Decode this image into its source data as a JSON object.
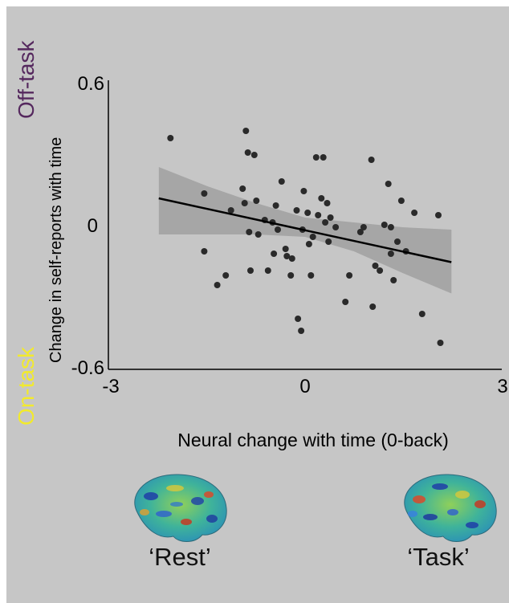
{
  "chart_data": {
    "type": "scatter",
    "xlabel": "Neural change with time (0-back)",
    "ylabel": "Change in self-reports with time",
    "xlim": [
      -3,
      3
    ],
    "ylim": [
      -0.6,
      0.6
    ],
    "x_ticks": [
      "-3",
      "0",
      "3"
    ],
    "y_ticks": [
      "0.6",
      "0",
      "-0.6"
    ],
    "side_labels": {
      "top": "Off-task",
      "bottom": "On-task"
    },
    "colors": {
      "top_label": "#55285e",
      "bottom_label": "#f2ea2c",
      "points": "#2a2a2a",
      "line": "#000000",
      "band": "#a6a6a6",
      "background": "#c6c6c6"
    },
    "fit_line": {
      "x": [
        -2.25,
        2.25
      ],
      "y": [
        0.11,
        -0.155
      ]
    },
    "confidence_band": {
      "x": [
        -2.25,
        -1.5,
        -0.75,
        0,
        0.75,
        1.5,
        2.25
      ],
      "upper": [
        0.24,
        0.16,
        0.09,
        0.03,
        0.01,
        -0.01,
        -0.02
      ],
      "lower": [
        -0.04,
        -0.04,
        -0.04,
        -0.05,
        -0.11,
        -0.2,
        -0.285
      ]
    },
    "points": [
      {
        "x": -2.07,
        "y": 0.36
      },
      {
        "x": -1.55,
        "y": 0.13
      },
      {
        "x": -1.55,
        "y": -0.11
      },
      {
        "x": -1.35,
        "y": -0.25
      },
      {
        "x": -1.22,
        "y": -0.21
      },
      {
        "x": -1.14,
        "y": 0.06
      },
      {
        "x": -0.96,
        "y": 0.15
      },
      {
        "x": -0.93,
        "y": 0.09
      },
      {
        "x": -0.91,
        "y": 0.39
      },
      {
        "x": -0.88,
        "y": 0.3
      },
      {
        "x": -0.86,
        "y": -0.03
      },
      {
        "x": -0.84,
        "y": -0.19
      },
      {
        "x": -0.78,
        "y": 0.29
      },
      {
        "x": -0.75,
        "y": 0.1
      },
      {
        "x": -0.72,
        "y": -0.04
      },
      {
        "x": -0.62,
        "y": 0.02
      },
      {
        "x": -0.57,
        "y": -0.19
      },
      {
        "x": -0.5,
        "y": 0.01
      },
      {
        "x": -0.48,
        "y": -0.12
      },
      {
        "x": -0.45,
        "y": 0.08
      },
      {
        "x": -0.42,
        "y": -0.02
      },
      {
        "x": -0.36,
        "y": 0.18
      },
      {
        "x": -0.3,
        "y": -0.1
      },
      {
        "x": -0.28,
        "y": -0.13
      },
      {
        "x": -0.22,
        "y": -0.21
      },
      {
        "x": -0.2,
        "y": -0.14
      },
      {
        "x": -0.13,
        "y": 0.06
      },
      {
        "x": -0.11,
        "y": -0.39
      },
      {
        "x": -0.06,
        "y": -0.44
      },
      {
        "x": -0.04,
        "y": -0.02
      },
      {
        "x": -0.02,
        "y": 0.14
      },
      {
        "x": 0.04,
        "y": 0.05
      },
      {
        "x": 0.06,
        "y": -0.08
      },
      {
        "x": 0.09,
        "y": -0.21
      },
      {
        "x": 0.12,
        "y": -0.05
      },
      {
        "x": 0.17,
        "y": 0.28
      },
      {
        "x": 0.2,
        "y": 0.04
      },
      {
        "x": 0.25,
        "y": 0.11
      },
      {
        "x": 0.28,
        "y": 0.28
      },
      {
        "x": 0.31,
        "y": 0.01
      },
      {
        "x": 0.34,
        "y": 0.09
      },
      {
        "x": 0.36,
        "y": -0.07
      },
      {
        "x": 0.39,
        "y": 0.03
      },
      {
        "x": 0.47,
        "y": -0.01
      },
      {
        "x": 0.62,
        "y": -0.32
      },
      {
        "x": 0.68,
        "y": -0.21
      },
      {
        "x": 0.85,
        "y": -0.03
      },
      {
        "x": 0.9,
        "y": -0.01
      },
      {
        "x": 1.02,
        "y": 0.27
      },
      {
        "x": 1.04,
        "y": -0.34
      },
      {
        "x": 1.08,
        "y": -0.17
      },
      {
        "x": 1.15,
        "y": -0.19
      },
      {
        "x": 1.22,
        "y": 0.0
      },
      {
        "x": 1.28,
        "y": 0.17
      },
      {
        "x": 1.32,
        "y": -0.01
      },
      {
        "x": 1.32,
        "y": -0.12
      },
      {
        "x": 1.36,
        "y": -0.23
      },
      {
        "x": 1.42,
        "y": -0.07
      },
      {
        "x": 1.48,
        "y": 0.1
      },
      {
        "x": 1.55,
        "y": -0.11
      },
      {
        "x": 1.68,
        "y": 0.05
      },
      {
        "x": 1.8,
        "y": -0.37
      },
      {
        "x": 2.05,
        "y": 0.04
      },
      {
        "x": 2.08,
        "y": -0.49
      }
    ]
  },
  "images": [
    {
      "label": "‘Rest’",
      "icon": "brain-surface-rest"
    },
    {
      "label": "‘Task’",
      "icon": "brain-surface-task"
    }
  ]
}
